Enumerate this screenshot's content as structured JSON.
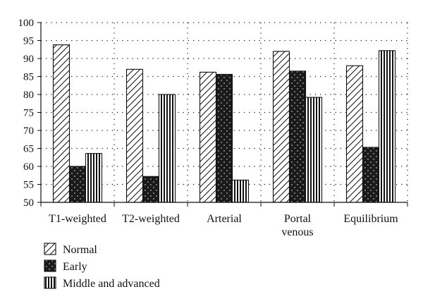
{
  "chart_data": {
    "type": "bar",
    "categories": [
      [
        "T1-weighted"
      ],
      [
        "T2-weighted"
      ],
      [
        "Arterial"
      ],
      [
        "Portal",
        "venous"
      ],
      [
        "Equilibrium"
      ]
    ],
    "series": [
      {
        "name": "Normal",
        "pattern": "diagonal-hatch",
        "values": [
          93.8,
          87.0,
          86.2,
          92.0,
          88.0
        ]
      },
      {
        "name": "Early",
        "pattern": "dark-dotted",
        "values": [
          60.0,
          57.2,
          85.6,
          86.5,
          65.3
        ]
      },
      {
        "name": "Middle and advanced",
        "pattern": "vertical-stripes",
        "values": [
          63.6,
          80.0,
          56.2,
          79.2,
          92.2
        ]
      }
    ],
    "yticks": [
      50,
      55,
      60,
      65,
      70,
      75,
      80,
      85,
      90,
      95,
      100
    ],
    "ylim": [
      50,
      100
    ],
    "grid": true,
    "legend_position": "bottom-left",
    "colors": {
      "ink": "#111111",
      "dark_fill": "#1a1a1a",
      "background": "#ffffff"
    }
  }
}
